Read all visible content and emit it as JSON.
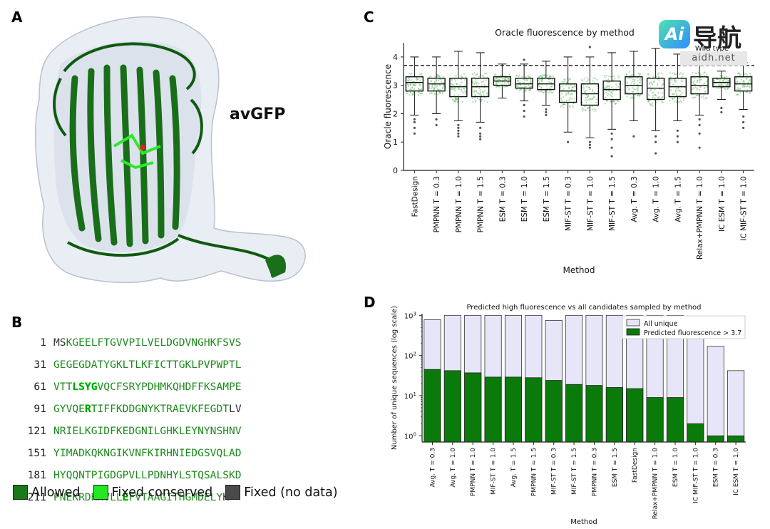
{
  "panels": {
    "a": {
      "letter": "A",
      "protein_label": "avGFP"
    },
    "b": {
      "letter": "B"
    },
    "c": {
      "letter": "C"
    },
    "d": {
      "letter": "D"
    }
  },
  "sequence": {
    "lines": [
      {
        "num": "1",
        "segments": [
          {
            "t": "MS",
            "c": "fixed_nodata"
          },
          {
            "t": "KGEELFTGVVPILVELDGDVNGHKFSVS",
            "c": "allowed"
          }
        ]
      },
      {
        "num": "31",
        "segments": [
          {
            "t": "GEGEGDATYGKLTLKFICTTGKLPVPWPTL",
            "c": "allowed"
          }
        ]
      },
      {
        "num": "61",
        "segments": [
          {
            "t": "VTT",
            "c": "allowed"
          },
          {
            "t": "LSYG",
            "c": "fixed_conserved"
          },
          {
            "t": "VQCFSRYPDHMKQHDFFKSAMPE",
            "c": "allowed"
          }
        ]
      },
      {
        "num": "91",
        "segments": [
          {
            "t": "GYVQE",
            "c": "allowed"
          },
          {
            "t": "R",
            "c": "fixed_conserved"
          },
          {
            "t": "TIFFKDDGNYKTRAEVKFEGDT",
            "c": "allowed"
          },
          {
            "t": "LV",
            "c": "fixed_nodata"
          }
        ]
      },
      {
        "num": "121",
        "segments": [
          {
            "t": "NRIELKGIDFKEDGNILGHKLEYNYNSHNV",
            "c": "allowed"
          }
        ]
      },
      {
        "num": "151",
        "segments": [
          {
            "t": "YIMADKQKNGIKVNFKIRHNIEDGSVQLAD",
            "c": "allowed"
          }
        ]
      },
      {
        "num": "181",
        "segments": [
          {
            "t": "HYQQNTPIGDGPVLLPDNHYLSTQSALSKD",
            "c": "allowed"
          }
        ]
      },
      {
        "num": "211",
        "segments": [
          {
            "t": "PNEKRDHMVLL",
            "c": "allowed"
          },
          {
            "t": "E",
            "c": "fixed_conserved"
          },
          {
            "t": "FVTAAGITHGMDELY",
            "c": "allowed"
          },
          {
            "t": "K",
            "c": "fixed_nodata"
          }
        ]
      }
    ],
    "legend": [
      {
        "label": "Allowed",
        "color": "#1a7a1a"
      },
      {
        "label": "Fixed conserved",
        "color": "#22e822"
      },
      {
        "label": "Fixed (no data)",
        "color": "#4a4a4a"
      }
    ],
    "colors": {
      "allowed": "#1f8a1f",
      "fixed_conserved": "#17c917",
      "fixed_nodata": "#333333"
    }
  },
  "watermark": {
    "logo": "Ai",
    "name": "导航",
    "url": "aidh.net"
  },
  "chart_data": [
    {
      "type": "box",
      "title": "Oracle fluorescence by method",
      "xlabel": "Method",
      "ylabel": "Oracle fluorescence",
      "ylim": [
        0,
        4.5
      ],
      "yticks": [
        "0",
        "1",
        "2",
        "3",
        "4"
      ],
      "reference_line": {
        "label": "Wild type",
        "value": 3.7
      },
      "categories": [
        "FastDesign",
        "PMPNN T = 0.3",
        "PMPNN T = 1.0",
        "PMPNN T = 1.5",
        "ESM T = 0.3",
        "ESM T = 1.0",
        "ESM T = 1.5",
        "MIF-ST T = 0.3",
        "MIF-ST T = 1.0",
        "MIF-ST T = 1.5",
        "Avg. T = 0.3",
        "Avg. T = 1.0",
        "Avg. T = 1.5",
        "Relax+PMPNN T = 1.0",
        "IC ESM T = 1.0",
        "IC MIF-ST T = 1.0"
      ],
      "series": [
        {
          "name": "FastDesign",
          "min": 1.95,
          "q1": 2.8,
          "median": 3.1,
          "q3": 3.3,
          "max": 4.0,
          "outliers": [
            1.3,
            1.5,
            1.7,
            1.8
          ]
        },
        {
          "name": "PMPNN T = 0.3",
          "min": 2.0,
          "q1": 2.8,
          "median": 3.05,
          "q3": 3.25,
          "max": 4.0,
          "outliers": [
            1.6,
            1.8
          ]
        },
        {
          "name": "PMPNN T = 1.0",
          "min": 1.75,
          "q1": 2.6,
          "median": 2.95,
          "q3": 3.25,
          "max": 4.2,
          "outliers": [
            1.2,
            1.3,
            1.4,
            1.5,
            1.6
          ]
        },
        {
          "name": "PMPNN T = 1.5",
          "min": 1.7,
          "q1": 2.6,
          "median": 2.95,
          "q3": 3.25,
          "max": 4.15,
          "outliers": [
            1.1,
            1.2,
            1.3,
            1.5
          ]
        },
        {
          "name": "ESM T = 0.3",
          "min": 2.55,
          "q1": 3.0,
          "median": 3.15,
          "q3": 3.3,
          "max": 3.75,
          "outliers": []
        },
        {
          "name": "ESM T = 1.0",
          "min": 2.45,
          "q1": 2.9,
          "median": 3.05,
          "q3": 3.25,
          "max": 3.75,
          "outliers": [
            1.9,
            2.1,
            2.3,
            3.9
          ]
        },
        {
          "name": "ESM T = 1.5",
          "min": 2.3,
          "q1": 2.85,
          "median": 3.05,
          "q3": 3.25,
          "max": 3.85,
          "outliers": [
            1.95,
            2.05,
            2.15
          ]
        },
        {
          "name": "MIF-ST T = 0.3",
          "min": 1.35,
          "q1": 2.4,
          "median": 2.8,
          "q3": 3.05,
          "max": 4.0,
          "outliers": [
            1.0
          ]
        },
        {
          "name": "MIF-ST T = 1.0",
          "min": 1.15,
          "q1": 2.3,
          "median": 2.7,
          "q3": 3.05,
          "max": 4.0,
          "outliers": [
            0.8,
            0.9,
            1.0,
            4.35
          ]
        },
        {
          "name": "MIF-ST T = 1.5",
          "min": 1.45,
          "q1": 2.5,
          "median": 2.85,
          "q3": 3.15,
          "max": 4.15,
          "outliers": [
            0.5,
            0.8,
            1.1,
            1.3
          ]
        },
        {
          "name": "Avg. T = 0.3",
          "min": 1.75,
          "q1": 2.7,
          "median": 3.0,
          "q3": 3.3,
          "max": 4.2,
          "outliers": [
            1.2
          ]
        },
        {
          "name": "Avg. T = 1.0",
          "min": 1.4,
          "q1": 2.5,
          "median": 2.9,
          "q3": 3.25,
          "max": 4.3,
          "outliers": [
            0.6,
            1.0,
            1.2
          ]
        },
        {
          "name": "Avg. T = 1.5",
          "min": 1.75,
          "q1": 2.6,
          "median": 2.95,
          "q3": 3.25,
          "max": 4.1,
          "outliers": [
            1.0,
            1.2,
            1.4
          ]
        },
        {
          "name": "Relax+PMPNN T = 1.0",
          "min": 1.95,
          "q1": 2.7,
          "median": 3.0,
          "q3": 3.3,
          "max": 4.0,
          "outliers": [
            0.8,
            1.3,
            1.6,
            1.8
          ]
        },
        {
          "name": "IC ESM T = 1.0",
          "min": 2.5,
          "q1": 2.95,
          "median": 3.1,
          "q3": 3.25,
          "max": 3.5,
          "outliers": [
            2.05,
            2.2
          ]
        },
        {
          "name": "IC MIF-ST T = 1.0",
          "min": 2.15,
          "q1": 2.8,
          "median": 3.05,
          "q3": 3.3,
          "max": 3.8,
          "outliers": [
            1.5,
            1.7,
            1.9
          ]
        }
      ]
    },
    {
      "type": "bar",
      "title": "Predicted high fluorescence vs all candidates sampled by method",
      "xlabel": "Method",
      "ylabel": "Number of unique sequences (log scale)",
      "yscale": "log",
      "ylim": [
        0.7,
        1100
      ],
      "ytick_base": "10",
      "ytick_exps": [
        "0",
        "1",
        "2",
        "3"
      ],
      "legend": [
        "All unique",
        "Predicted fluorescence > 3.7"
      ],
      "colors": {
        "all_unique": "#e6e6f8",
        "predicted": "#0a7a0a"
      },
      "categories": [
        "Avg. T = 0.3",
        "Avg. T = 1.0",
        "PMPNN T = 1.0",
        "MIF-ST T = 1.0",
        "Avg. T = 1.5",
        "PMPNN T = 1.5",
        "MIF-ST T = 0.3",
        "MIF-ST T = 1.5",
        "PMPNN T = 0.3",
        "ESM T = 1.5",
        "FastDesign",
        "Relax+PMPNN T = 1.0",
        "ESM T = 1.0",
        "IC MIF-ST T = 1.0",
        "ESM T = 0.3",
        "IC ESM T = 1.0"
      ],
      "series": [
        {
          "name": "All unique",
          "values": [
            780,
            1000,
            1000,
            1000,
            1000,
            1000,
            750,
            1000,
            1000,
            1000,
            1000,
            1000,
            1000,
            600,
            170,
            42
          ]
        },
        {
          "name": "Predicted fluorescence > 3.7",
          "values": [
            45,
            42,
            37,
            29,
            29,
            28,
            24,
            19,
            18,
            16,
            15,
            9,
            9,
            2,
            1,
            1
          ]
        }
      ]
    }
  ]
}
